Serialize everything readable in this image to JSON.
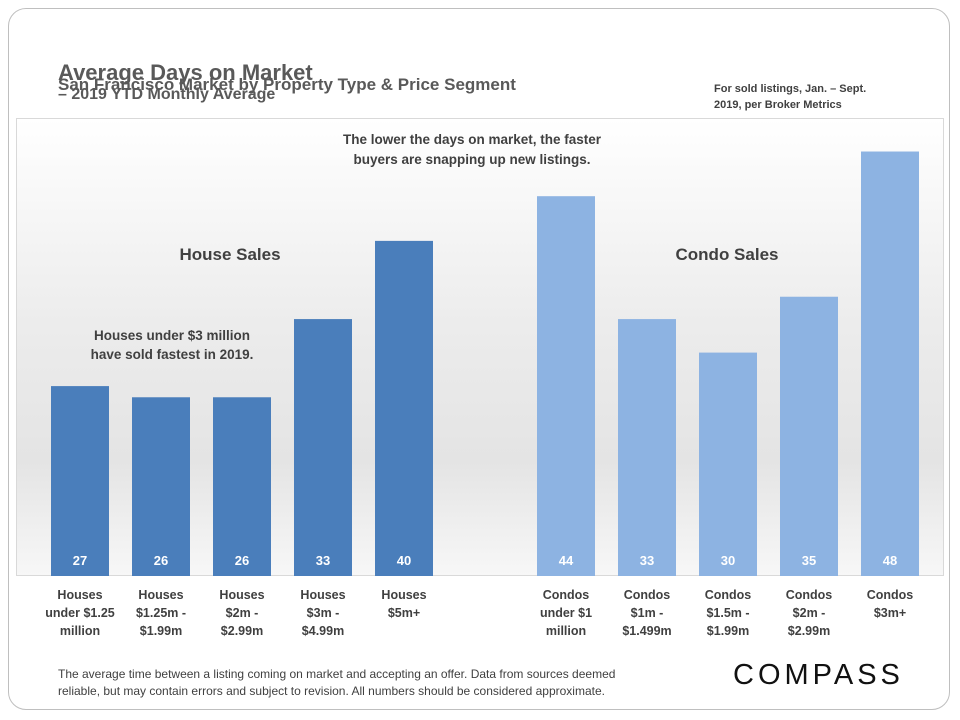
{
  "header": {
    "title": "Average Days on Market",
    "title_suffix": "– 2019 YTD Monthly Average",
    "subtitle": "San Francisco Market by Property Type & Price Segment",
    "note": "For sold listings, Jan. – Sept.\n2019, per Broker Metrics"
  },
  "chart_data": {
    "type": "bar",
    "ylim": [
      10,
      51
    ],
    "annotations": [
      "The lower the days on market, the faster\nbuyers are snapping up new listings.",
      "Houses under $3 million\nhave sold fastest in 2019."
    ],
    "groups": [
      {
        "name": "House Sales",
        "color": "#4a7ebb",
        "categories": [
          "Houses\nunder $1.25\nmillion",
          "Houses\n$1.25m -\n$1.99m",
          "Houses\n$2m -\n$2.99m",
          "Houses\n$3m -\n$4.99m",
          "Houses\n$5m+"
        ],
        "values": [
          27,
          26,
          26,
          33,
          40
        ]
      },
      {
        "name": "Condo Sales",
        "color": "#8db3e2",
        "categories": [
          "Condos\nunder $1\nmillion",
          "Condos\n$1m -\n$1.499m",
          "Condos\n$1.5m -\n$1.99m",
          "Condos\n$2m -\n$2.99m",
          "Condos\n$3m+"
        ],
        "values": [
          44,
          33,
          30,
          35,
          48
        ]
      }
    ]
  },
  "footer": {
    "disclaimer": "The average time between a listing coming on market and accepting an offer. Data from sources deemed\nreliable, but may contain errors and subject to revision. All numbers should be considered approximate.",
    "logo": "COMPASS"
  }
}
